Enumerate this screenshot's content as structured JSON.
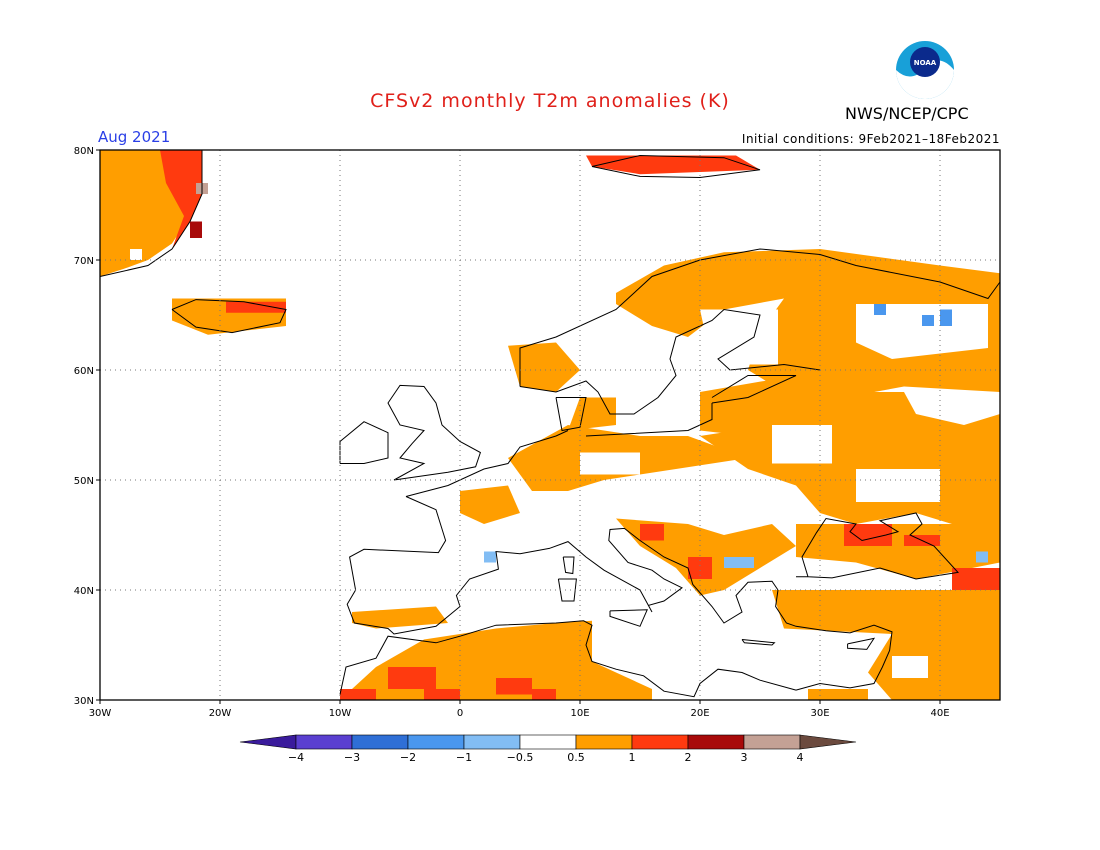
{
  "header": {
    "title": "CFSv2 monthly T2m anomalies (K)",
    "title_color": "#e0201a",
    "agency": "NWS/NCEP/CPC",
    "logo_text": "NOAA",
    "month": "Aug 2021",
    "month_color": "#2a3fe6",
    "init_conditions": "Initial conditions: 9Feb2021–18Feb2021"
  },
  "map": {
    "lon_range": [
      -30,
      45
    ],
    "lat_range": [
      30,
      80
    ],
    "x_ticks": [
      "30W",
      "20W",
      "10W",
      "0",
      "10E",
      "20E",
      "30E",
      "40E"
    ],
    "y_ticks": [
      "30N",
      "40N",
      "50N",
      "60N",
      "70N",
      "80N"
    ],
    "grid": "dotted"
  },
  "colorbar": {
    "labels": [
      "−4",
      "−3",
      "−2",
      "−1",
      "−0.5",
      "0.5",
      "1",
      "2",
      "3",
      "4"
    ],
    "colors": [
      "#3a1b9c",
      "#5a3fd0",
      "#2f6fd6",
      "#4a97ee",
      "#82bdf4",
      "#ffffff",
      "#ff9e00",
      "#ff3a0f",
      "#a80a0a",
      "#c4a195",
      "#6b4a3e"
    ]
  }
}
